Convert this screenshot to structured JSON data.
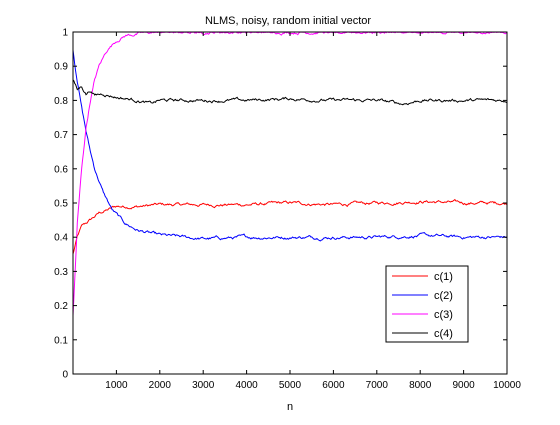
{
  "chart_data": {
    "type": "line",
    "title": "NLMS, noisy, random initial vector",
    "xlabel": "n",
    "ylabel": "",
    "xlim": [
      0,
      10000
    ],
    "ylim": [
      0,
      1
    ],
    "xticks": [
      1000,
      2000,
      3000,
      4000,
      5000,
      6000,
      7000,
      8000,
      9000,
      10000
    ],
    "yticks": [
      0,
      0.1,
      0.2,
      0.3,
      0.4,
      0.5,
      0.6,
      0.7,
      0.8,
      0.9,
      1
    ],
    "grid": false,
    "legend_position": "bottom-right",
    "series": [
      {
        "name": "c(1)",
        "color": "#ff0000",
        "x": [
          0,
          100,
          200,
          300,
          400,
          600,
          800,
          1000,
          1500,
          2000,
          3000,
          4000,
          5000,
          6000,
          7000,
          8000,
          9000,
          10000
        ],
        "y": [
          0.35,
          0.4,
          0.43,
          0.44,
          0.45,
          0.47,
          0.48,
          0.49,
          0.49,
          0.495,
          0.495,
          0.495,
          0.5,
          0.495,
          0.5,
          0.505,
          0.5,
          0.5
        ]
      },
      {
        "name": "c(2)",
        "color": "#0000ff",
        "x": [
          0,
          50,
          100,
          200,
          300,
          400,
          500,
          700,
          900,
          1200,
          1500,
          2000,
          2500,
          3000,
          4000,
          5000,
          6000,
          7000,
          8000,
          9000,
          10000
        ],
        "y": [
          0.95,
          0.9,
          0.86,
          0.78,
          0.71,
          0.65,
          0.6,
          0.53,
          0.48,
          0.44,
          0.42,
          0.405,
          0.4,
          0.395,
          0.4,
          0.4,
          0.4,
          0.4,
          0.405,
          0.4,
          0.4
        ]
      },
      {
        "name": "c(3)",
        "color": "#ff00ff",
        "x": [
          0,
          50,
          100,
          200,
          300,
          400,
          500,
          600,
          800,
          1000,
          1200,
          1500,
          2000,
          3000,
          4000,
          5000,
          6000,
          7000,
          8000,
          9000,
          10000
        ],
        "y": [
          0.17,
          0.3,
          0.44,
          0.6,
          0.72,
          0.8,
          0.86,
          0.9,
          0.95,
          0.975,
          0.99,
          0.995,
          1.0,
          1.0,
          1.0,
          1.0,
          1.0,
          1.0,
          1.0,
          1.0,
          1.0
        ]
      },
      {
        "name": "c(4)",
        "color": "#000000",
        "x": [
          0,
          100,
          200,
          300,
          400,
          500,
          700,
          1000,
          1500,
          1800,
          2000,
          3000,
          4000,
          5000,
          6000,
          7000,
          7600,
          8000,
          9000,
          10000
        ],
        "y": [
          0.86,
          0.83,
          0.84,
          0.82,
          0.83,
          0.815,
          0.82,
          0.81,
          0.8,
          0.79,
          0.8,
          0.8,
          0.8,
          0.805,
          0.8,
          0.8,
          0.79,
          0.8,
          0.8,
          0.8
        ]
      }
    ]
  }
}
